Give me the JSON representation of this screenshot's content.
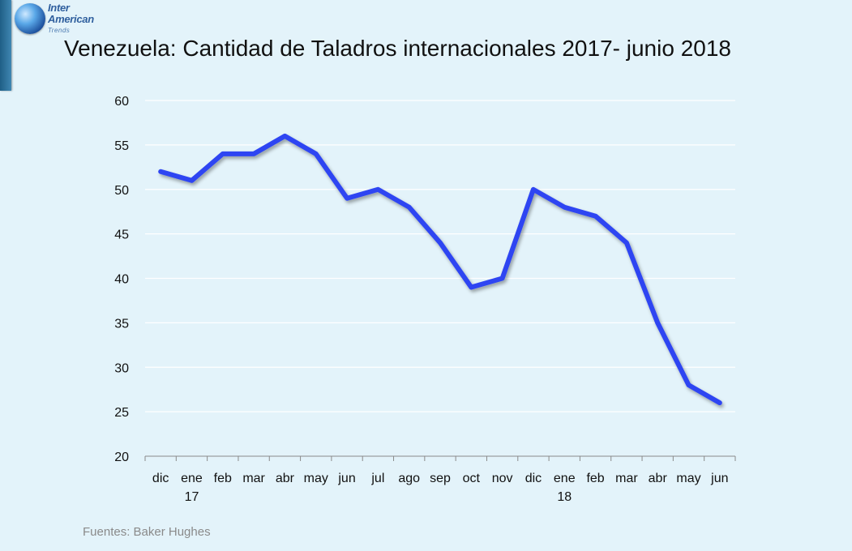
{
  "logo": {
    "line1": "Inter",
    "line2": "American",
    "line3": "Trends"
  },
  "chart_data": {
    "type": "line",
    "title": "Venezuela: Cantidad de Taladros internacionales 2017- junio 2018",
    "categories": [
      "dic",
      "ene",
      "feb",
      "mar",
      "abr",
      "may",
      "jun",
      "jul",
      "ago",
      "sep",
      "oct",
      "nov",
      "dic",
      "ene",
      "feb",
      "mar",
      "abr",
      "may",
      "jun"
    ],
    "year_labels": [
      "",
      "17",
      "",
      "",
      "",
      "",
      "",
      "",
      "",
      "",
      "",
      "",
      "",
      "18",
      "",
      "",
      "",
      "",
      ""
    ],
    "series": [
      {
        "values": [
          52,
          51,
          54,
          54,
          56,
          54,
          49,
          50,
          48,
          44,
          39,
          40,
          50,
          48,
          47,
          44,
          35,
          28,
          26
        ]
      }
    ],
    "ylim": [
      20,
      60
    ],
    "yticks": [
      20,
      25,
      30,
      35,
      40,
      45,
      50,
      55,
      60
    ],
    "grid": true,
    "line_color": "#2d45f2",
    "xlabel": "",
    "ylabel": ""
  },
  "source": "Fuentes: Baker Hughes"
}
